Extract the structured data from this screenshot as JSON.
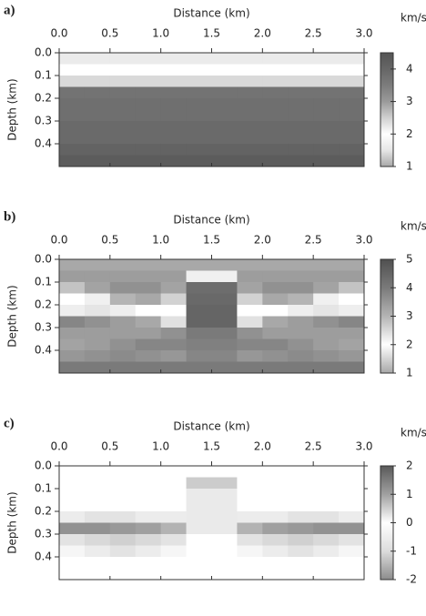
{
  "chart_data": [
    {
      "type": "heatmap",
      "title": "a)",
      "xlabel": "Distance (km)",
      "ylabel": "Depth (km)",
      "colorbar_label": "km/s",
      "xlim": [
        0,
        3
      ],
      "xticks": [
        {
          "value": 0,
          "label": "0.0"
        },
        0.5,
        {
          "value": 1,
          "label": "1.0"
        },
        1.5,
        {
          "value": 2,
          "label": "2.0"
        },
        2.5,
        {
          "value": 3,
          "label": "3.0"
        }
      ],
      "ylim": [
        0,
        0.5
      ],
      "yticks": [
        {
          "value": 0,
          "label": "0.0"
        },
        0.1,
        0.2,
        0.3,
        0.4
      ],
      "clim": [
        1,
        4.5
      ],
      "cticks": [
        1,
        2,
        3,
        4
      ],
      "colormap": [
        "#a8a8a8",
        "#e6e6e6",
        "#ffffff",
        "#d0d0d0",
        "#9a9a9a",
        "#7c7c7c",
        "#666666",
        "#555555"
      ],
      "x": [
        0.125,
        0.375,
        0.625,
        0.875,
        1.125,
        1.375,
        1.625,
        1.875,
        2.125,
        2.375,
        2.625,
        2.875
      ],
      "y": [
        0.025,
        0.075,
        0.125,
        0.175,
        0.225,
        0.275,
        0.325,
        0.375,
        0.425,
        0.475
      ],
      "z": [
        [
          1.6,
          1.6,
          1.6,
          1.6,
          1.6,
          1.6,
          1.6,
          1.6,
          1.6,
          1.6,
          1.6,
          1.6
        ],
        [
          2.0,
          2.0,
          2.0,
          2.0,
          2.0,
          2.0,
          2.0,
          2.0,
          2.0,
          2.0,
          2.0,
          2.0
        ],
        [
          2.4,
          2.4,
          2.4,
          2.4,
          2.4,
          2.4,
          2.4,
          2.4,
          2.4,
          2.4,
          2.4,
          2.4
        ],
        [
          3.7,
          3.7,
          3.7,
          3.7,
          3.7,
          3.7,
          3.7,
          3.7,
          3.7,
          3.7,
          3.7,
          3.7
        ],
        [
          3.8,
          3.8,
          3.8,
          3.8,
          3.8,
          3.8,
          3.8,
          3.8,
          3.8,
          3.8,
          3.8,
          3.8
        ],
        [
          3.8,
          3.8,
          3.8,
          3.8,
          3.8,
          3.8,
          3.8,
          3.8,
          3.8,
          3.8,
          3.8,
          3.8
        ],
        [
          3.9,
          3.9,
          3.9,
          3.9,
          3.9,
          3.9,
          3.9,
          3.9,
          3.9,
          3.9,
          3.9,
          3.9
        ],
        [
          3.9,
          3.9,
          3.9,
          3.9,
          3.9,
          3.9,
          3.9,
          3.9,
          3.9,
          3.9,
          3.9,
          3.9
        ],
        [
          4.1,
          4.1,
          4.1,
          4.1,
          4.1,
          4.1,
          4.1,
          4.1,
          4.1,
          4.1,
          4.1,
          4.1
        ],
        [
          4.3,
          4.3,
          4.3,
          4.3,
          4.3,
          4.3,
          4.3,
          4.3,
          4.3,
          4.3,
          4.3,
          4.3
        ]
      ]
    },
    {
      "type": "heatmap",
      "title": "b)",
      "xlabel": "Distance (km)",
      "ylabel": "Depth (km)",
      "colorbar_label": "km/s",
      "xlim": [
        0,
        3
      ],
      "xticks": [
        {
          "value": 0,
          "label": "0.0"
        },
        0.5,
        {
          "value": 1,
          "label": "1.0"
        },
        1.5,
        {
          "value": 2,
          "label": "2.0"
        },
        2.5,
        {
          "value": 3,
          "label": "3.0"
        }
      ],
      "ylim": [
        0,
        0.5
      ],
      "yticks": [
        {
          "value": 0,
          "label": "0.0"
        },
        0.1,
        0.2,
        0.3,
        0.4
      ],
      "clim": [
        1,
        5
      ],
      "cticks": [
        1,
        2,
        3,
        4,
        5
      ],
      "colormap": [
        "#a8a8a8",
        "#ffffff",
        "#b4b4b4",
        "#7a7a7a",
        "#505050"
      ],
      "x": [
        0.125,
        0.375,
        0.625,
        0.875,
        1.125,
        1.375,
        1.625,
        1.875,
        2.125,
        2.375,
        2.625,
        2.875
      ],
      "y": [
        0.025,
        0.075,
        0.125,
        0.175,
        0.225,
        0.275,
        0.325,
        0.375,
        0.425,
        0.475
      ],
      "z": [
        [
          3.2,
          3.2,
          3.2,
          3.2,
          3.2,
          3.2,
          3.2,
          3.2,
          3.2,
          3.2,
          3.2,
          3.2
        ],
        [
          3.4,
          3.4,
          3.4,
          3.4,
          3.4,
          2.2,
          2.2,
          3.4,
          3.4,
          3.4,
          3.4,
          3.4
        ],
        [
          2.8,
          3.3,
          3.6,
          3.6,
          3.3,
          4.3,
          4.3,
          3.3,
          3.6,
          3.6,
          3.3,
          2.8
        ],
        [
          2.0,
          2.2,
          3.0,
          3.2,
          2.6,
          4.4,
          4.4,
          2.6,
          3.2,
          3.0,
          2.2,
          2.0
        ],
        [
          1.8,
          1.7,
          1.8,
          2.0,
          2.0,
          4.5,
          4.5,
          2.0,
          2.0,
          1.8,
          1.7,
          1.8
        ],
        [
          3.8,
          3.6,
          3.4,
          3.2,
          2.4,
          4.5,
          4.5,
          2.4,
          3.2,
          3.4,
          3.6,
          3.8
        ],
        [
          3.4,
          3.4,
          3.4,
          3.4,
          3.6,
          4.0,
          4.0,
          3.6,
          3.4,
          3.4,
          3.4,
          3.4
        ],
        [
          3.3,
          3.4,
          3.6,
          3.8,
          3.8,
          3.9,
          3.9,
          3.8,
          3.8,
          3.6,
          3.4,
          3.3
        ],
        [
          3.5,
          3.6,
          3.7,
          3.6,
          3.5,
          3.8,
          3.8,
          3.5,
          3.6,
          3.7,
          3.6,
          3.5
        ],
        [
          4.0,
          4.0,
          4.0,
          4.0,
          4.0,
          4.0,
          4.0,
          4.0,
          4.0,
          4.0,
          4.0,
          4.0
        ]
      ]
    },
    {
      "type": "heatmap",
      "title": "c)",
      "xlabel": "Distance (km)",
      "ylabel": "Depth (km)",
      "colorbar_label": "km/s",
      "xlim": [
        0,
        3
      ],
      "xticks": [
        {
          "value": 0,
          "label": "0.0"
        },
        0.5,
        {
          "value": 1,
          "label": "1.0"
        },
        1.5,
        {
          "value": 2,
          "label": "2.0"
        },
        2.5,
        {
          "value": 3,
          "label": "3.0"
        }
      ],
      "ylim": [
        0,
        0.5
      ],
      "yticks": [
        {
          "value": 0,
          "label": "0.0"
        },
        0.1,
        0.2,
        0.3,
        0.4
      ],
      "clim": [
        -2,
        2
      ],
      "cticks": [
        2,
        1,
        0,
        -1,
        -2
      ],
      "colormap": [
        "#8c8c8c",
        "#dcdcdc",
        "#ffffff",
        "#a0a0a0",
        "#5a5a5a"
      ],
      "x": [
        0.125,
        0.375,
        0.625,
        0.875,
        1.125,
        1.375,
        1.625,
        1.875,
        2.125,
        2.375,
        2.625,
        2.875
      ],
      "y": [
        0.025,
        0.075,
        0.125,
        0.175,
        0.225,
        0.275,
        0.325,
        0.375,
        0.425,
        0.475
      ],
      "z": [
        [
          0,
          0,
          0,
          0,
          0,
          0,
          0,
          0,
          0,
          0,
          0,
          0
        ],
        [
          0,
          0,
          0,
          0,
          0,
          -1.2,
          -1.2,
          0,
          0,
          0,
          0,
          0
        ],
        [
          0,
          0,
          0,
          0,
          0,
          -0.6,
          -0.6,
          0,
          0,
          0,
          0,
          0
        ],
        [
          0,
          0,
          0,
          0,
          0,
          -0.6,
          -0.6,
          0,
          0,
          0,
          0,
          0
        ],
        [
          0.2,
          0.3,
          0.3,
          0.2,
          0.2,
          -0.6,
          -0.6,
          0.2,
          0.2,
          0.3,
          0.3,
          0.2
        ],
        [
          1.2,
          1.2,
          1.1,
          1.0,
          0.8,
          -0.6,
          -0.6,
          0.8,
          1.0,
          1.1,
          1.2,
          1.2
        ],
        [
          0.3,
          0.4,
          0.5,
          0.4,
          0.3,
          0,
          0,
          0.3,
          0.4,
          0.5,
          0.4,
          0.3
        ],
        [
          0.1,
          0.2,
          0.3,
          0.2,
          0.1,
          0,
          0,
          0.1,
          0.2,
          0.3,
          0.2,
          0.1
        ],
        [
          0,
          0,
          0,
          0,
          0,
          0,
          0,
          0,
          0,
          0,
          0,
          0
        ],
        [
          0,
          0,
          0,
          0,
          0,
          0,
          0,
          0,
          0,
          0,
          0,
          0
        ]
      ]
    }
  ]
}
